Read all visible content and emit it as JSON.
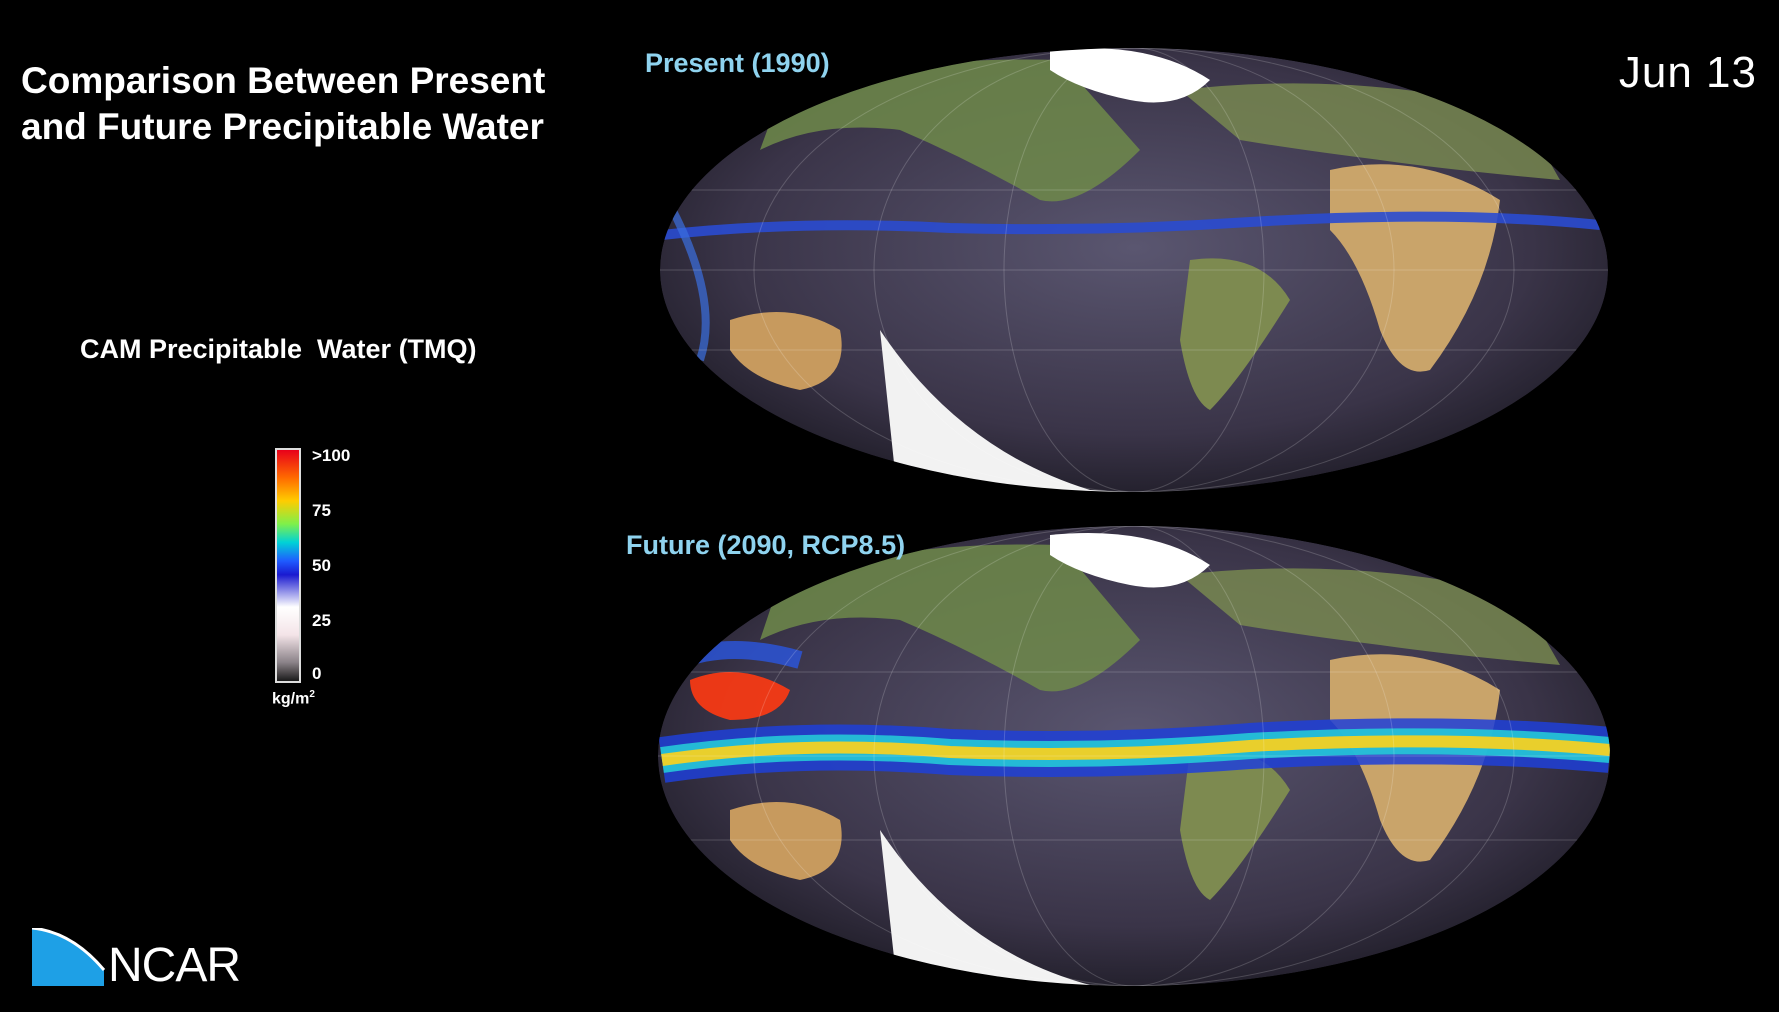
{
  "title": {
    "line1": "Comparison Between Present",
    "line2": "and Future Precipitable Water"
  },
  "date": "Jun  13",
  "maps": {
    "present_label": "Present (1990)",
    "future_label": "Future (2090, RCP8.5)"
  },
  "legend": {
    "title": "CAM Precipitable  Water (TMQ)",
    "ticks": [
      ">100",
      "75",
      "50",
      "25",
      "0"
    ],
    "unit": "kg/m",
    "unit_sup": "2"
  },
  "logo": {
    "text": "NCAR"
  },
  "colors": {
    "label": "#8fd3ef",
    "background": "#000000"
  }
}
